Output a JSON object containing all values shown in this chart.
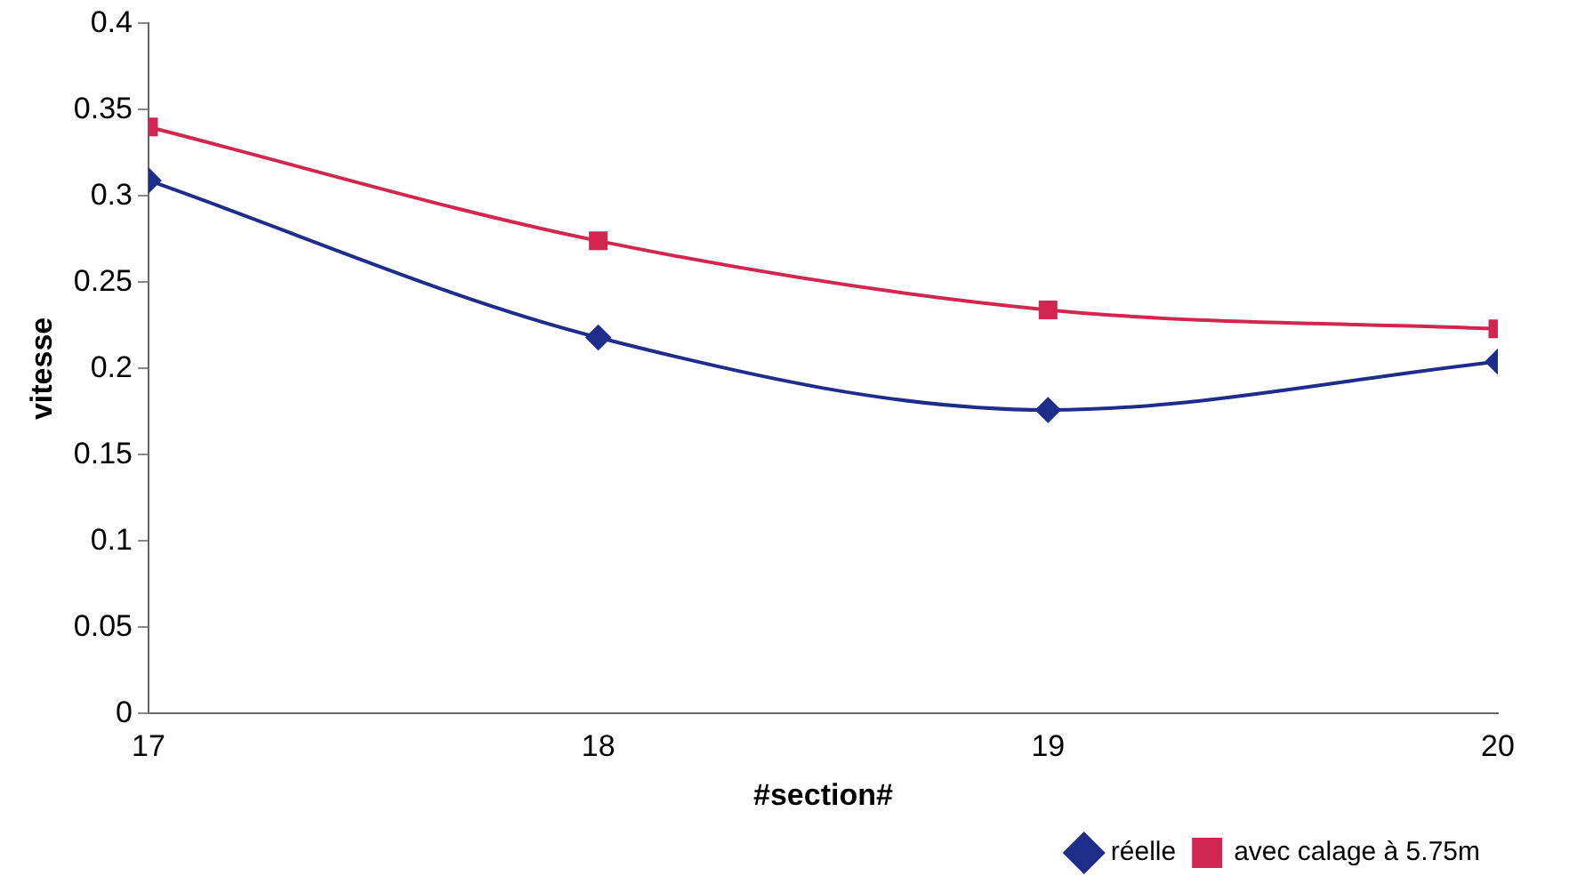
{
  "chart_data": {
    "type": "line",
    "xlabel": "#section#",
    "ylabel": "vitesse",
    "x": [
      17,
      18,
      19,
      20
    ],
    "xlim": [
      17,
      20
    ],
    "xticks": [
      17,
      18,
      19,
      20
    ],
    "ylim": [
      0,
      0.4
    ],
    "yticks": [
      0,
      0.05,
      0.1,
      0.15,
      0.2,
      0.25,
      0.3,
      0.35,
      0.4
    ],
    "grid": false,
    "legend": "bottom right",
    "line_style": "solid",
    "series": [
      {
        "name": "réelle",
        "color": "#1f2d8a",
        "marker": "diamond",
        "values": [
          0.309,
          0.218,
          0.176,
          0.204
        ]
      },
      {
        "name": "avec calage à 5.75m",
        "color": "#d1264f",
        "marker": "square",
        "values": [
          0.34,
          0.274,
          0.234,
          0.223
        ]
      }
    ]
  }
}
